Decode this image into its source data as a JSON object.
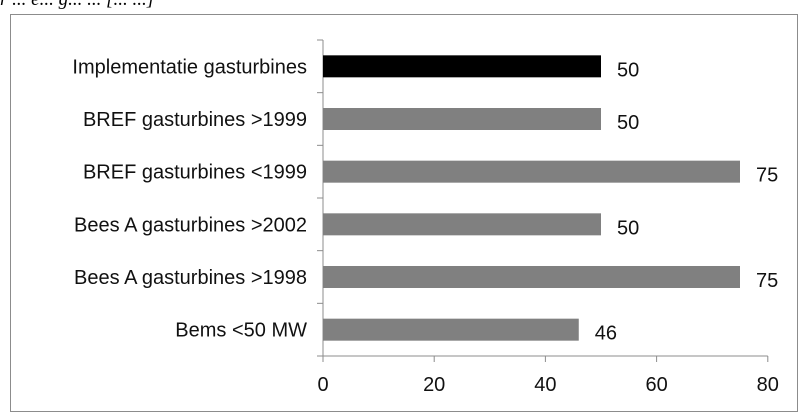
{
  "caption": "r ... e... g... ... [... ...]",
  "chart_data": {
    "type": "bar",
    "orientation": "horizontal",
    "categories": [
      "Implementatie gasturbines",
      "BREF gasturbines >1999",
      "BREF gasturbines <1999",
      "Bees A gasturbines >2002",
      "Bees A gasturbines >1998",
      "Bems <50 MW"
    ],
    "values": [
      50,
      50,
      75,
      50,
      75,
      46
    ],
    "bar_colors": [
      "#000000",
      "#808080",
      "#808080",
      "#808080",
      "#808080",
      "#808080"
    ],
    "xlim": [
      0,
      80
    ],
    "xticks": [
      0,
      20,
      40,
      60,
      80
    ],
    "title": "",
    "xlabel": "",
    "ylabel": "",
    "grid": false,
    "data_labels": true
  }
}
